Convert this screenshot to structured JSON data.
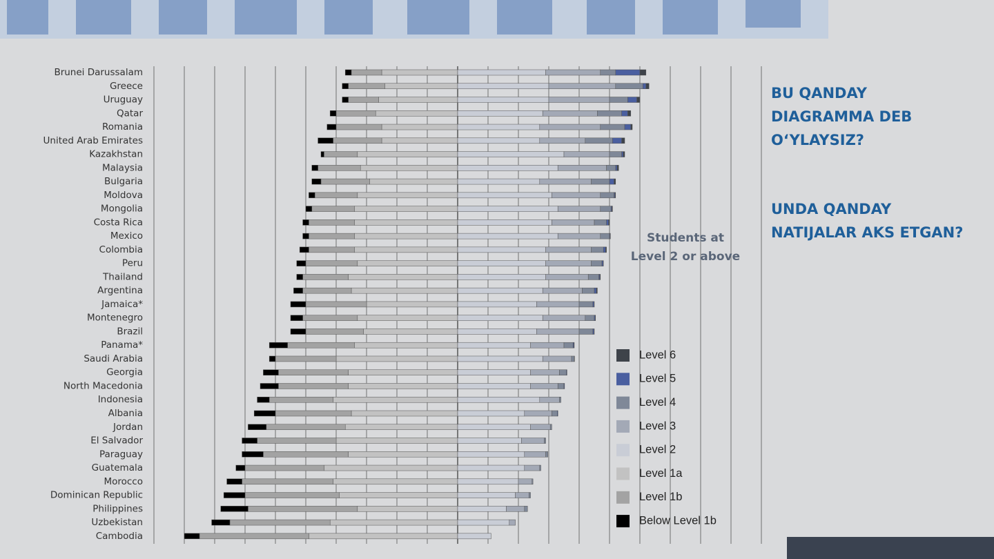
{
  "chart_data": {
    "type": "diverging_stacked_bar",
    "annotation": [
      "Students at",
      "Level 2 or above"
    ],
    "categories": [
      "Brunei Darussalam",
      "Greece",
      "Uruguay",
      "Qatar",
      "Romania",
      "United Arab Emirates",
      "Kazakhstan",
      "Malaysia",
      "Bulgaria",
      "Moldova",
      "Mongolia",
      "Costa Rica",
      "Mexico",
      "Colombia",
      "Peru",
      "Thailand",
      "Argentina",
      "Jamaica*",
      "Montenegro",
      "Brazil",
      "Panama*",
      "Saudi Arabia",
      "Georgia",
      "North Macedonia",
      "Indonesia",
      "Albania",
      "Jordan",
      "El Salvador",
      "Paraguay",
      "Guatemala",
      "Morocco",
      "Dominican Republic",
      "Philippines",
      "Uzbekistan",
      "Cambodia"
    ],
    "xlim": [
      -100,
      100
    ],
    "xticks": [
      -100,
      -90,
      -80,
      -70,
      -60,
      -50,
      -40,
      -30,
      -20,
      -10,
      0,
      10,
      20,
      30,
      40,
      50,
      60,
      70,
      80,
      90,
      100
    ],
    "grid": true,
    "series": [
      {
        "name": "Level 6",
        "color": "#3e434a",
        "side": "right",
        "values": [
          2,
          1,
          1,
          1,
          0.5,
          1,
          0.5,
          0.5,
          0.5,
          0.2,
          0.2,
          0.3,
          0.1,
          0.3,
          0.1,
          0.2,
          0.3,
          0.1,
          0.1,
          0.1,
          0.1,
          0,
          0,
          0,
          0,
          0,
          0,
          0,
          0,
          0,
          0,
          0,
          0,
          0,
          0
        ]
      },
      {
        "name": "Level 5",
        "color": "#4a5fa0",
        "side": "right",
        "values": [
          8,
          1,
          3,
          2,
          2,
          3,
          0.5,
          0.5,
          1.5,
          0.3,
          0.3,
          0.7,
          0.2,
          0.7,
          0.4,
          0.3,
          0.7,
          0.4,
          0.3,
          0.4,
          0.3,
          0.1,
          0.2,
          0.2,
          0,
          0.2,
          0,
          0,
          0,
          0,
          0,
          0,
          0,
          0,
          0
        ]
      },
      {
        "name": "Level 4",
        "color": "#7f8898",
        "side": "right",
        "values": [
          5,
          9,
          6,
          8,
          8,
          9,
          4,
          3,
          6,
          4.5,
          3.5,
          4,
          3,
          4,
          3.5,
          3.5,
          4,
          4.5,
          3,
          4.5,
          3,
          0.9,
          2.3,
          2,
          0.5,
          1.8,
          0.5,
          0.5,
          0.7,
          0.4,
          0.3,
          0.5,
          1,
          0,
          0
        ]
      },
      {
        "name": "Level 3",
        "color": "#a3a9b6",
        "side": "right",
        "values": [
          18,
          22,
          20,
          18,
          20,
          15,
          15,
          16,
          17,
          16,
          14,
          14,
          14,
          15,
          15,
          14,
          13,
          14,
          14,
          14,
          11,
          9.5,
          9.5,
          9,
          6.5,
          9,
          6.5,
          7.5,
          7,
          5,
          4.5,
          4.5,
          6,
          2,
          0
        ]
      },
      {
        "name": "Level 2",
        "color": "#c9cdd6",
        "side": "right",
        "values": [
          29,
          30,
          30,
          28,
          27,
          27,
          35,
          33,
          27,
          31,
          33,
          31,
          33,
          29,
          29,
          29,
          28,
          26,
          28,
          26,
          24,
          28,
          24,
          24,
          27,
          22,
          24,
          21,
          22,
          22,
          20,
          19,
          16,
          17,
          11
        ]
      },
      {
        "name": "Level 1a",
        "color": "#c2c2c2",
        "side": "left",
        "values": [
          25,
          24,
          26,
          27,
          25,
          25,
          33,
          32,
          29,
          33,
          34,
          34,
          34,
          34,
          33,
          36,
          35,
          30,
          33,
          31,
          34,
          40,
          36,
          36,
          41,
          35,
          37,
          40,
          36,
          44,
          41,
          39,
          33,
          42,
          49
        ]
      },
      {
        "name": "Level 1b",
        "color": "#a3a3a3",
        "side": "left",
        "values": [
          10,
          12,
          10,
          13,
          15,
          16,
          11,
          14,
          16,
          14,
          14,
          15,
          15,
          15,
          17,
          15,
          16,
          20,
          18,
          19,
          22,
          20,
          23,
          23,
          21,
          25,
          26,
          26,
          28,
          26,
          30,
          31,
          36,
          33,
          36
        ]
      },
      {
        "name": "Below Level 1b",
        "color": "#000000",
        "side": "left",
        "values": [
          2,
          2,
          2,
          2,
          3,
          5,
          1,
          2,
          3,
          2,
          2,
          2,
          2,
          3,
          3,
          2,
          3,
          5,
          4,
          5,
          6,
          2,
          5,
          6,
          4,
          7,
          6,
          5,
          7,
          3,
          5,
          7,
          9,
          6,
          5
        ]
      }
    ]
  },
  "question_1": [
    "BU QANDAY",
    "DIAGRAMMA DEB",
    "O‘YLAYSIZ?"
  ],
  "question_2": [
    "UNDA QANDAY",
    "NATIJALAR AKS ETGAN?"
  ]
}
